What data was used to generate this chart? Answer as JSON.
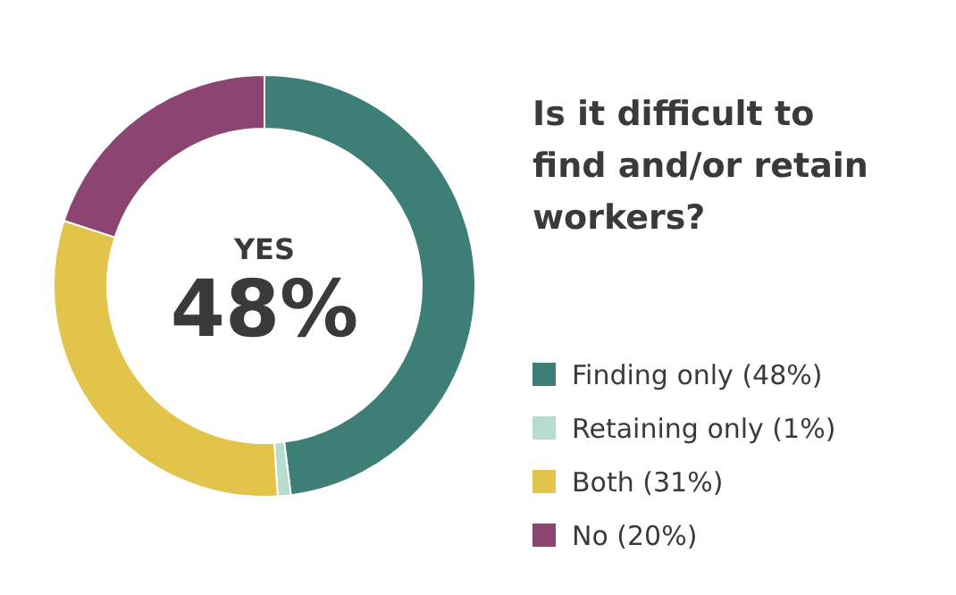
{
  "chart_data": {
    "type": "donut",
    "title": "Is it difficult to find and/or retain workers?",
    "categories": [
      "Finding only (48%)",
      "Retaining only (1%)",
      "Both (31%)",
      "No (20%)"
    ],
    "values": [
      48,
      1,
      31,
      20
    ],
    "colors": [
      "#3d7f77",
      "#b5dccf",
      "#e3c44b",
      "#8c4571"
    ],
    "annotations": [
      "YES",
      "48%"
    ],
    "legend": "right"
  }
}
